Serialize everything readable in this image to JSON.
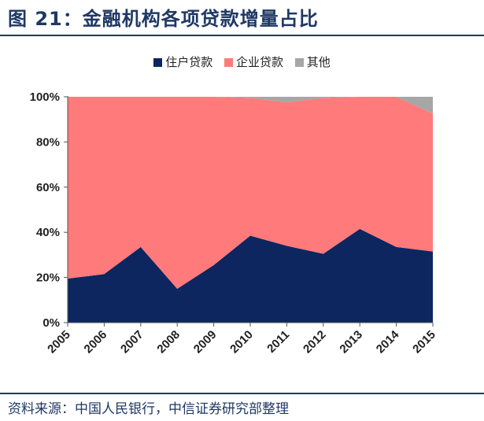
{
  "figure": {
    "title": "图 21：金融机构各项贷款增量占比",
    "source": "资料来源：中国人民银行，中信证券研究部整理"
  },
  "colors": {
    "household": "#0d2660",
    "corporate": "#ff7a7a",
    "other": "#a6a6a6",
    "header": "#1f3864"
  },
  "chart_data": {
    "type": "area",
    "stacked": true,
    "percent": true,
    "categories": [
      "2005",
      "2006",
      "2007",
      "2008",
      "2009",
      "2010",
      "2011",
      "2012",
      "2013",
      "2014",
      "2015"
    ],
    "series": [
      {
        "name": "住户贷款",
        "values": [
          19.5,
          21.5,
          33.5,
          15.0,
          25.5,
          38.5,
          34.0,
          30.5,
          41.5,
          33.5,
          31.5
        ]
      },
      {
        "name": "企业贷款",
        "values": [
          80.5,
          78.5,
          66.5,
          85.0,
          74.5,
          61.0,
          63.5,
          69.0,
          58.5,
          66.5,
          61.0
        ]
      },
      {
        "name": "其他",
        "values": [
          0,
          0,
          0,
          0,
          0,
          0.5,
          2.5,
          0.5,
          0,
          0,
          7.5
        ]
      }
    ],
    "yticks": [
      "0%",
      "20%",
      "40%",
      "60%",
      "80%",
      "100%"
    ],
    "ylim": [
      0,
      100
    ],
    "legend_position": "top"
  }
}
